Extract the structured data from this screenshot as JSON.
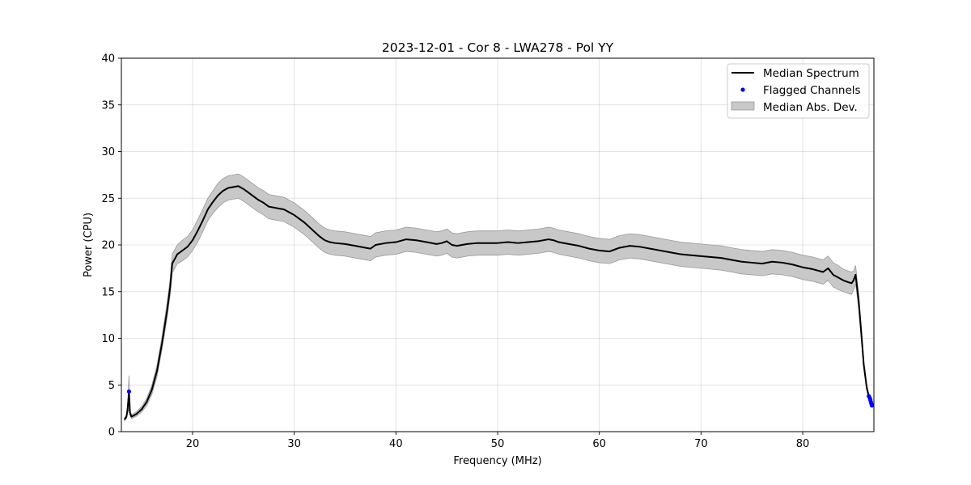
{
  "chart_data": {
    "type": "line",
    "title": "2023-12-01 - Cor 8 - LWA278 - Pol YY",
    "xlabel": "Frequency (MHz)",
    "ylabel": "Power (CPU)",
    "xlim": [
      13.0,
      87.0
    ],
    "ylim": [
      0,
      40
    ],
    "xticks": [
      20,
      30,
      40,
      50,
      60,
      70,
      80
    ],
    "yticks": [
      0,
      5,
      10,
      15,
      20,
      25,
      30,
      35,
      40
    ],
    "grid": true,
    "legend_position": "top-right",
    "colors": {
      "median": "#000000",
      "flagged": "#0000ff",
      "mad_fill": "#c8c8c8",
      "mad_edge": "#9a9a9a"
    },
    "legend": [
      {
        "label": "Median Spectrum",
        "kind": "line"
      },
      {
        "label": "Flagged Channels",
        "kind": "point"
      },
      {
        "label": "Median Abs. Dev.",
        "kind": "band"
      }
    ],
    "series": [
      {
        "name": "Median Spectrum",
        "x": [
          13.3,
          13.5,
          13.6,
          13.75,
          13.85,
          14.0,
          14.5,
          15.0,
          15.5,
          16.0,
          16.5,
          17.0,
          17.5,
          17.8,
          18.0,
          18.5,
          19.0,
          19.5,
          20.0,
          20.5,
          21.0,
          21.5,
          22.0,
          22.5,
          23.0,
          23.5,
          24.0,
          24.5,
          25.0,
          25.5,
          26.0,
          26.5,
          27.0,
          27.5,
          28.0,
          28.5,
          29.0,
          29.5,
          30.0,
          30.5,
          31.0,
          31.5,
          32.0,
          32.5,
          33.0,
          33.5,
          34.0,
          35.0,
          36.0,
          37.0,
          37.5,
          38.0,
          39.0,
          40.0,
          41.0,
          42.0,
          43.0,
          44.0,
          44.5,
          45.0,
          45.5,
          46.0,
          47.0,
          48.0,
          49.0,
          50.0,
          51.0,
          52.0,
          53.0,
          54.0,
          55.0,
          55.5,
          56.0,
          57.0,
          58.0,
          59.0,
          60.0,
          61.0,
          62.0,
          63.0,
          64.0,
          65.0,
          66.0,
          67.0,
          68.0,
          69.0,
          70.0,
          71.0,
          72.0,
          73.0,
          74.0,
          75.0,
          76.0,
          77.0,
          78.0,
          79.0,
          80.0,
          81.0,
          82.0,
          82.5,
          83.0,
          83.5,
          84.0,
          84.5,
          84.8,
          85.0,
          85.2,
          85.5,
          85.8,
          86.0,
          86.3,
          86.5,
          86.7,
          86.85
        ],
        "y": [
          1.3,
          1.6,
          2.3,
          4.2,
          2.0,
          1.6,
          1.9,
          2.4,
          3.2,
          4.5,
          6.5,
          9.5,
          13.0,
          15.5,
          18.0,
          19.0,
          19.4,
          19.8,
          20.5,
          21.5,
          22.6,
          23.8,
          24.6,
          25.3,
          25.8,
          26.1,
          26.2,
          26.3,
          26.0,
          25.6,
          25.2,
          24.8,
          24.5,
          24.1,
          24.0,
          23.9,
          23.8,
          23.5,
          23.2,
          22.8,
          22.4,
          21.9,
          21.4,
          20.9,
          20.5,
          20.3,
          20.2,
          20.1,
          19.9,
          19.7,
          19.6,
          20.0,
          20.2,
          20.3,
          20.6,
          20.5,
          20.3,
          20.1,
          20.2,
          20.4,
          20.0,
          19.9,
          20.1,
          20.2,
          20.2,
          20.2,
          20.3,
          20.2,
          20.3,
          20.4,
          20.6,
          20.5,
          20.3,
          20.1,
          19.9,
          19.6,
          19.4,
          19.3,
          19.7,
          19.9,
          19.8,
          19.6,
          19.4,
          19.2,
          19.0,
          18.9,
          18.8,
          18.7,
          18.6,
          18.4,
          18.2,
          18.1,
          18.0,
          18.2,
          18.1,
          17.9,
          17.6,
          17.4,
          17.1,
          17.5,
          16.8,
          16.5,
          16.2,
          16.0,
          15.9,
          16.2,
          16.8,
          14.0,
          10.0,
          7.2,
          4.7,
          3.8,
          3.3,
          2.9
        ],
        "mad": [
          0.15,
          0.2,
          0.3,
          1.8,
          0.3,
          0.2,
          0.25,
          0.3,
          0.4,
          0.5,
          0.6,
          0.7,
          0.8,
          0.9,
          1.0,
          1.0,
          1.1,
          1.1,
          1.1,
          1.2,
          1.2,
          1.2,
          1.2,
          1.3,
          1.3,
          1.3,
          1.3,
          1.3,
          1.3,
          1.3,
          1.3,
          1.3,
          1.3,
          1.3,
          1.3,
          1.3,
          1.3,
          1.3,
          1.3,
          1.3,
          1.3,
          1.3,
          1.3,
          1.3,
          1.3,
          1.3,
          1.3,
          1.3,
          1.3,
          1.3,
          1.3,
          1.3,
          1.3,
          1.3,
          1.3,
          1.3,
          1.3,
          1.3,
          1.3,
          1.3,
          1.3,
          1.3,
          1.3,
          1.3,
          1.3,
          1.3,
          1.3,
          1.3,
          1.3,
          1.3,
          1.3,
          1.3,
          1.3,
          1.3,
          1.3,
          1.3,
          1.3,
          1.3,
          1.3,
          1.3,
          1.3,
          1.3,
          1.3,
          1.3,
          1.3,
          1.3,
          1.3,
          1.3,
          1.3,
          1.3,
          1.3,
          1.3,
          1.3,
          1.3,
          1.3,
          1.3,
          1.3,
          1.3,
          1.3,
          1.3,
          1.3,
          1.3,
          1.2,
          1.2,
          1.2,
          1.0,
          1.0,
          0.8,
          0.6,
          0.4,
          0.3,
          0.25,
          0.2,
          0.2
        ]
      },
      {
        "name": "Flagged Channels",
        "x": [
          13.75,
          86.5,
          86.6,
          86.65,
          86.7,
          86.75,
          86.8
        ],
        "y": [
          4.3,
          3.8,
          3.6,
          3.4,
          3.2,
          3.0,
          2.8
        ]
      }
    ]
  }
}
